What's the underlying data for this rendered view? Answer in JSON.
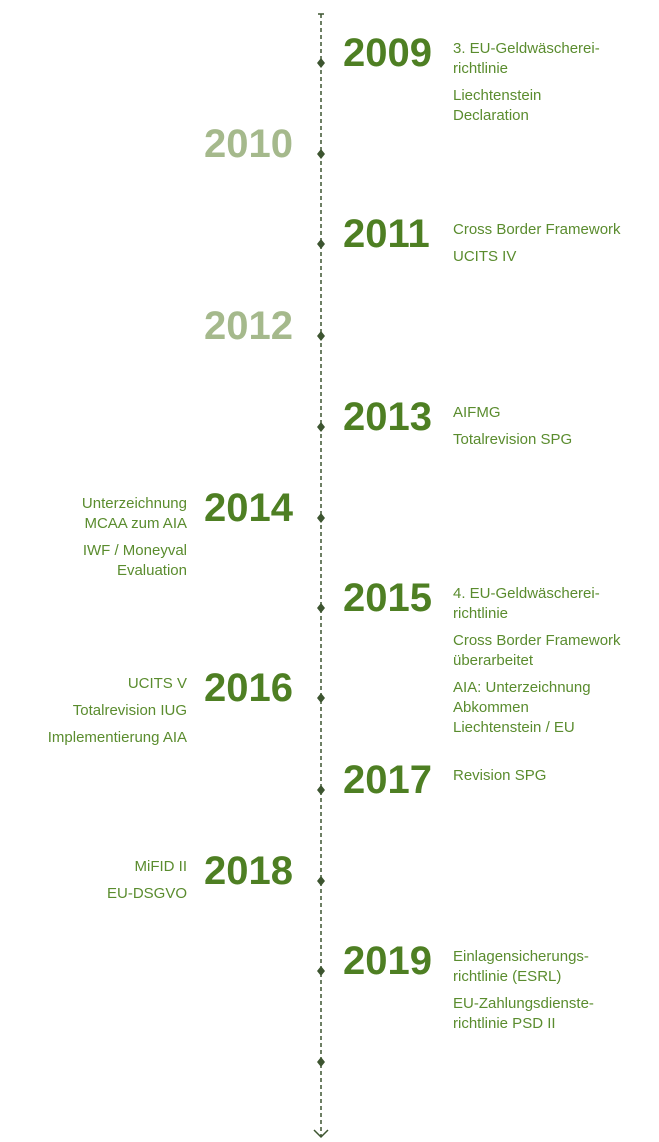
{
  "timeline": {
    "entries": [
      {
        "year": "2009",
        "side": "right",
        "color": "#4e7f23",
        "items": [
          [
            "3. EU-Geldwäscherei-",
            "richtlinie"
          ],
          [
            "Liechtenstein",
            "Declaration"
          ]
        ]
      },
      {
        "year": "2010",
        "side": "left",
        "color": "#a5b98c",
        "items": []
      },
      {
        "year": "2011",
        "side": "right",
        "color": "#4e7f23",
        "items": [
          [
            "Cross Border Framework"
          ],
          [
            "UCITS IV"
          ]
        ]
      },
      {
        "year": "2012",
        "side": "left",
        "color": "#a5b98c",
        "items": []
      },
      {
        "year": "2013",
        "side": "right",
        "color": "#4e7f23",
        "items": [
          [
            "AIFMG"
          ],
          [
            "Totalrevision SPG"
          ]
        ]
      },
      {
        "year": "2014",
        "side": "left",
        "color": "#4e7f23",
        "items": [
          [
            "Unterzeichnung",
            "MCAA zum AIA"
          ],
          [
            "IWF / Moneyval",
            "Evaluation"
          ]
        ]
      },
      {
        "year": "2015",
        "side": "right",
        "color": "#4e7f23",
        "items": [
          [
            "4. EU-Geldwäscherei-",
            "richtlinie"
          ],
          [
            "Cross Border Framework",
            "überarbeitet"
          ],
          [
            "AIA: Unterzeichnung",
            "Abkommen",
            "Liechtenstein / EU"
          ]
        ]
      },
      {
        "year": "2016",
        "side": "left",
        "color": "#4e7f23",
        "items": [
          [
            "UCITS V"
          ],
          [
            "Totalrevision IUG"
          ],
          [
            "Implementierung AIA"
          ]
        ]
      },
      {
        "year": "2017",
        "side": "right",
        "color": "#4e7f23",
        "items": [
          [
            "Revision SPG"
          ]
        ]
      },
      {
        "year": "2018",
        "side": "left",
        "color": "#4e7f23",
        "items": [
          [
            "MiFID II"
          ],
          [
            "EU-DSGVO"
          ]
        ]
      },
      {
        "year": "2019",
        "side": "right",
        "color": "#4e7f23",
        "items": [
          [
            "Einlagensicherungs-",
            "richtlinie (ESRL)"
          ],
          [
            "EU-Zahlungsdienste-",
            "richtlinie PSD II"
          ]
        ]
      }
    ]
  }
}
